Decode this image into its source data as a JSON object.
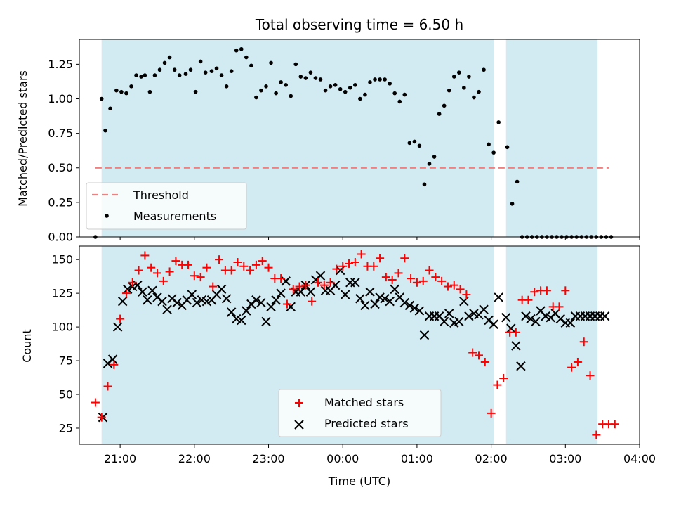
{
  "figure": {
    "title": "Total observing time = 6.50 h"
  },
  "colors": {
    "shade": "#add8e6",
    "threshold": "#f08080",
    "matched": "#ff0000",
    "predicted": "#000000",
    "measurement": "#000000"
  },
  "chart_data": [
    {
      "type": "scatter",
      "panel": "top",
      "ylabel": "Matched/Predicted stars",
      "xlabel": "",
      "xlim": [
        "20:27",
        "04:00"
      ],
      "ylim": [
        0,
        1.43
      ],
      "yticks": [
        0,
        0.25,
        0.5,
        0.75,
        1.0,
        1.25
      ],
      "ytick_labels": [
        "0.00",
        "0.25",
        "0.50",
        "0.75",
        "1.00",
        "1.25"
      ],
      "grid": false,
      "legend": {
        "placement": "lower-left",
        "entries": [
          "Threshold",
          "Measurements"
        ]
      },
      "observing_windows": [
        [
          "20:45",
          "02:02"
        ],
        [
          "02:12",
          "03:26"
        ]
      ],
      "threshold": {
        "name": "Threshold",
        "value": 0.5,
        "x_range": [
          "20:40",
          "03:35"
        ]
      },
      "series": [
        {
          "name": "Measurements",
          "marker": "dot",
          "x": [
            "20:40",
            "20:45",
            "20:48",
            "20:52",
            "20:57",
            "21:01",
            "21:05",
            "21:09",
            "21:13",
            "21:17",
            "21:20",
            "21:24",
            "21:28",
            "21:32",
            "21:36",
            "21:40",
            "21:44",
            "21:48",
            "21:53",
            "21:57",
            "22:01",
            "22:05",
            "22:09",
            "22:14",
            "22:18",
            "22:22",
            "22:26",
            "22:30",
            "22:34",
            "22:38",
            "22:42",
            "22:46",
            "22:50",
            "22:54",
            "22:58",
            "23:02",
            "23:06",
            "23:10",
            "23:14",
            "23:18",
            "23:22",
            "23:26",
            "23:30",
            "23:34",
            "23:38",
            "23:42",
            "23:46",
            "23:50",
            "23:54",
            "23:58",
            "00:02",
            "00:06",
            "00:10",
            "00:14",
            "00:18",
            "00:22",
            "00:26",
            "00:30",
            "00:34",
            "00:38",
            "00:42",
            "00:46",
            "00:50",
            "00:54",
            "00:58",
            "01:02",
            "01:06",
            "01:10",
            "01:14",
            "01:18",
            "01:22",
            "01:26",
            "01:30",
            "01:34",
            "01:38",
            "01:42",
            "01:46",
            "01:50",
            "01:54",
            "01:58",
            "02:02",
            "02:06",
            "02:13",
            "02:17",
            "02:21",
            "02:25",
            "02:29",
            "02:33",
            "02:37",
            "02:41",
            "02:45",
            "02:49",
            "02:53",
            "02:57",
            "03:01",
            "03:05",
            "03:09",
            "03:13",
            "03:17",
            "03:21",
            "03:25",
            "03:29",
            "03:33",
            "03:37"
          ],
          "y": [
            0.0,
            1.0,
            0.77,
            0.93,
            1.06,
            1.05,
            1.04,
            1.09,
            1.17,
            1.16,
            1.17,
            1.05,
            1.17,
            1.21,
            1.26,
            1.3,
            1.21,
            1.17,
            1.18,
            1.21,
            1.05,
            1.27,
            1.19,
            1.2,
            1.22,
            1.17,
            1.09,
            1.2,
            1.35,
            1.36,
            1.3,
            1.24,
            1.01,
            1.06,
            1.09,
            1.26,
            1.04,
            1.12,
            1.1,
            1.02,
            1.25,
            1.16,
            1.15,
            1.19,
            1.15,
            1.14,
            1.06,
            1.09,
            1.1,
            1.07,
            1.05,
            1.08,
            1.1,
            1.0,
            1.03,
            1.12,
            1.14,
            1.14,
            1.14,
            1.11,
            1.04,
            0.98,
            1.03,
            0.68,
            0.69,
            0.66,
            0.38,
            0.53,
            0.58,
            0.89,
            0.95,
            1.06,
            1.16,
            1.19,
            1.08,
            1.16,
            1.01,
            1.05,
            1.21,
            0.67,
            0.61,
            0.83,
            0.65,
            0.24,
            0.4,
            0.0,
            0.0,
            0.0,
            0.0,
            0.0,
            0.0,
            0.0,
            0.0,
            0.0,
            0.0,
            0.0,
            0.0,
            0.0,
            0.0,
            0.0,
            0.0,
            0.0,
            0.0,
            0.0
          ]
        }
      ]
    },
    {
      "type": "scatter",
      "panel": "bottom",
      "ylabel": "Count",
      "xlabel": "Time (UTC)",
      "xlim": [
        "20:27",
        "04:00"
      ],
      "ylim": [
        13,
        160
      ],
      "yticks": [
        25,
        50,
        75,
        100,
        125,
        150
      ],
      "ytick_labels": [
        "25",
        "50",
        "75",
        "100",
        "125",
        "150"
      ],
      "xticks": [
        "21:00",
        "22:00",
        "23:00",
        "00:00",
        "01:00",
        "02:00",
        "03:00",
        "04:00"
      ],
      "xtick_labels": [
        "21:00",
        "22:00",
        "23:00",
        "00:00",
        "01:00",
        "02:00",
        "03:00",
        "04:00"
      ],
      "grid": false,
      "legend": {
        "placement": "lower-center",
        "entries": [
          "Matched stars",
          "Predicted stars"
        ]
      },
      "observing_windows": [
        [
          "20:45",
          "02:02"
        ],
        [
          "02:12",
          "03:26"
        ]
      ],
      "series": [
        {
          "name": "Matched stars",
          "marker": "plus",
          "x": [
            "20:40",
            "20:45",
            "20:50",
            "20:55",
            "21:00",
            "21:05",
            "21:10",
            "21:15",
            "21:20",
            "21:25",
            "21:30",
            "21:35",
            "21:40",
            "21:45",
            "21:50",
            "21:55",
            "22:00",
            "22:05",
            "22:10",
            "22:15",
            "22:20",
            "22:25",
            "22:30",
            "22:35",
            "22:40",
            "22:45",
            "22:50",
            "22:55",
            "23:00",
            "23:05",
            "23:10",
            "23:15",
            "23:20",
            "23:25",
            "23:30",
            "23:35",
            "23:40",
            "23:45",
            "23:50",
            "23:55",
            "00:00",
            "00:05",
            "00:10",
            "00:15",
            "00:20",
            "00:25",
            "00:30",
            "00:35",
            "00:40",
            "00:45",
            "00:50",
            "00:55",
            "01:00",
            "01:05",
            "01:10",
            "01:15",
            "01:20",
            "01:25",
            "01:30",
            "01:35",
            "01:40",
            "01:45",
            "01:50",
            "01:55",
            "02:00",
            "02:05",
            "02:10",
            "02:15",
            "02:20",
            "02:25",
            "02:30",
            "02:35",
            "02:40",
            "02:45",
            "02:50",
            "02:55",
            "03:00",
            "03:05",
            "03:10",
            "03:15",
            "03:20",
            "03:25",
            "03:30",
            "03:35",
            "03:40"
          ],
          "y": [
            44,
            33,
            56,
            72,
            106,
            125,
            133,
            142,
            153,
            144,
            140,
            134,
            141,
            149,
            146,
            146,
            138,
            137,
            144,
            130,
            150,
            142,
            142,
            148,
            145,
            142,
            146,
            149,
            144,
            136,
            136,
            117,
            128,
            130,
            131,
            119,
            133,
            131,
            133,
            143,
            145,
            147,
            148,
            154,
            145,
            145,
            151,
            137,
            135,
            140,
            151,
            136,
            133,
            134,
            142,
            137,
            134,
            130,
            131,
            128,
            124,
            81,
            79,
            74,
            36,
            57,
            62,
            96,
            96,
            120,
            120,
            126,
            127,
            127,
            115,
            115,
            127,
            70,
            74,
            89,
            64,
            20,
            28,
            28,
            28
          ]
        },
        {
          "name": "Predicted stars",
          "marker": "x",
          "x": [
            "20:46",
            "20:50",
            "20:54",
            "20:58",
            "21:02",
            "21:06",
            "21:10",
            "21:14",
            "21:18",
            "21:22",
            "21:26",
            "21:30",
            "21:34",
            "21:38",
            "21:42",
            "21:46",
            "21:50",
            "21:54",
            "21:58",
            "22:02",
            "22:06",
            "22:10",
            "22:14",
            "22:18",
            "22:22",
            "22:26",
            "22:30",
            "22:34",
            "22:38",
            "22:42",
            "22:46",
            "22:50",
            "22:54",
            "22:58",
            "23:02",
            "23:06",
            "23:10",
            "23:14",
            "23:18",
            "23:22",
            "23:26",
            "23:30",
            "23:34",
            "23:38",
            "23:42",
            "23:46",
            "23:50",
            "23:54",
            "23:58",
            "00:02",
            "00:06",
            "00:10",
            "00:14",
            "00:18",
            "00:22",
            "00:26",
            "00:30",
            "00:34",
            "00:38",
            "00:42",
            "00:46",
            "00:50",
            "00:54",
            "00:58",
            "01:02",
            "01:06",
            "01:10",
            "01:14",
            "01:18",
            "01:22",
            "01:26",
            "01:30",
            "01:34",
            "01:38",
            "01:42",
            "01:46",
            "01:50",
            "01:54",
            "01:58",
            "02:02",
            "02:06",
            "02:12",
            "02:16",
            "02:20",
            "02:24",
            "02:28",
            "02:32",
            "02:36",
            "02:40",
            "02:44",
            "02:48",
            "02:52",
            "02:56",
            "03:00",
            "03:04",
            "03:08",
            "03:12",
            "03:16",
            "03:20",
            "03:24",
            "03:28",
            "03:32"
          ],
          "y": [
            33,
            73,
            76,
            100,
            119,
            128,
            130,
            131,
            126,
            120,
            127,
            122,
            119,
            113,
            121,
            118,
            116,
            120,
            124,
            118,
            120,
            119,
            120,
            124,
            128,
            121,
            111,
            106,
            105,
            112,
            117,
            120,
            118,
            104,
            115,
            120,
            125,
            134,
            115,
            126,
            126,
            131,
            126,
            135,
            138,
            127,
            127,
            131,
            142,
            124,
            133,
            133,
            121,
            116,
            126,
            117,
            122,
            121,
            119,
            128,
            122,
            118,
            116,
            114,
            112,
            94,
            108,
            108,
            108,
            104,
            110,
            103,
            104,
            119,
            108,
            110,
            109,
            113,
            105,
            102,
            122,
            107,
            99,
            86,
            71,
            108,
            106,
            104,
            112,
            108,
            107,
            110,
            106,
            103,
            103,
            108,
            108,
            108,
            108,
            108,
            108,
            108
          ]
        }
      ]
    }
  ]
}
